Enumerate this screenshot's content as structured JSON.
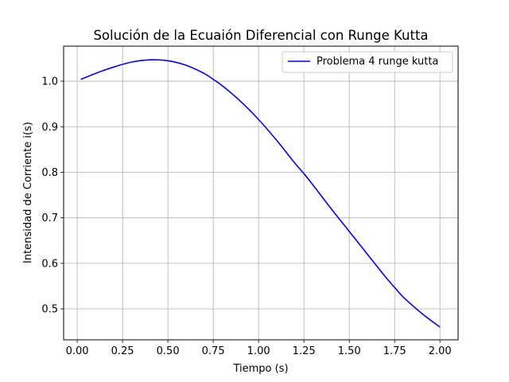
{
  "chart_data": {
    "type": "line",
    "title": "Solución de la Ecuaión Diferencial con Runge Kutta",
    "xlabel": "Tiempo (s)",
    "ylabel": "Intensidad de Corriente i(s)",
    "xlim": [
      -0.075,
      2.1
    ],
    "ylim": [
      0.432,
      1.077
    ],
    "xticks": [
      0.0,
      0.25,
      0.5,
      0.75,
      1.0,
      1.25,
      1.5,
      1.75,
      2.0
    ],
    "xtick_labels": [
      "0.00",
      "0.25",
      "0.50",
      "0.75",
      "1.00",
      "1.25",
      "1.50",
      "1.75",
      "2.00"
    ],
    "yticks": [
      0.5,
      0.6,
      0.7,
      0.8,
      0.9,
      1.0
    ],
    "ytick_labels": [
      "0.5",
      "0.6",
      "0.7",
      "0.8",
      "0.9",
      "1.0"
    ],
    "grid": true,
    "legend_position": "top-right",
    "series": [
      {
        "name": "Problema 4 runge kutta",
        "color": "#0000ff",
        "x": [
          0.02,
          0.1,
          0.2,
          0.3,
          0.4,
          0.5,
          0.6,
          0.7,
          0.75,
          0.8,
          0.9,
          1.0,
          1.1,
          1.2,
          1.25,
          1.3,
          1.4,
          1.5,
          1.6,
          1.7,
          1.75,
          1.8,
          1.9,
          2.0
        ],
        "y": [
          1.004,
          1.017,
          1.031,
          1.042,
          1.047,
          1.045,
          1.035,
          1.017,
          1.004,
          0.99,
          0.956,
          0.916,
          0.87,
          0.82,
          0.797,
          0.772,
          0.72,
          0.67,
          0.62,
          0.57,
          0.547,
          0.525,
          0.49,
          0.46
        ]
      }
    ]
  }
}
